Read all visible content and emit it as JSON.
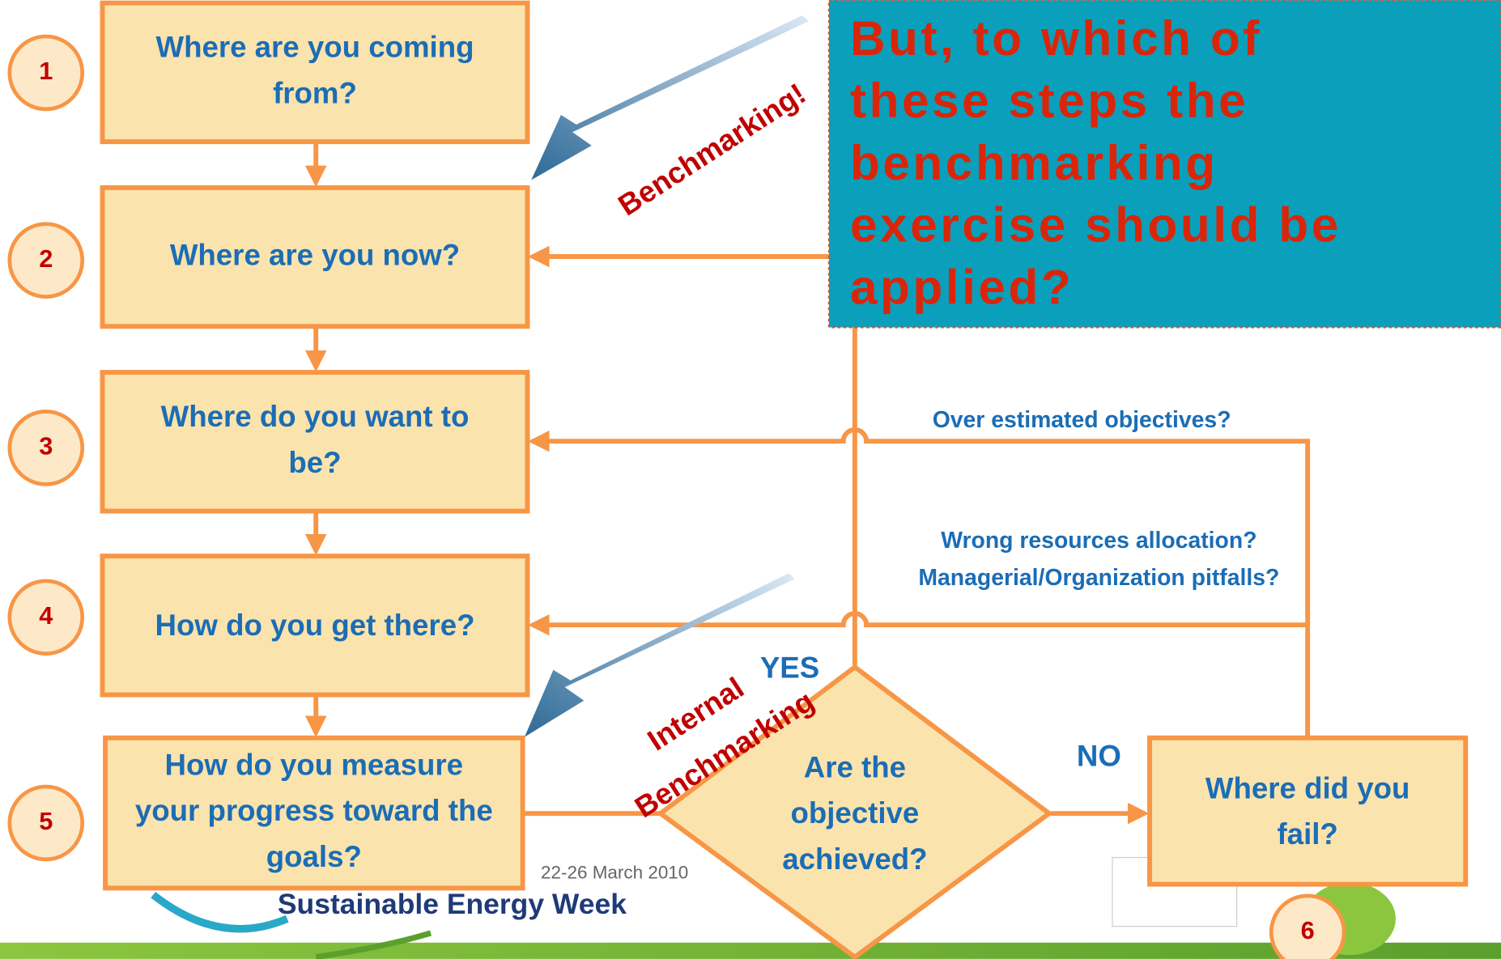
{
  "steps": [
    {
      "number": "1",
      "lines": [
        "Where are you coming",
        "from?"
      ]
    },
    {
      "number": "2",
      "lines": [
        "Where are you now?"
      ]
    },
    {
      "number": "3",
      "lines": [
        "Where do you want to",
        "be?"
      ]
    },
    {
      "number": "4",
      "lines": [
        "How do you get there?"
      ]
    },
    {
      "number": "5",
      "lines": [
        "How do you measure",
        "your progress toward the",
        "goals?"
      ]
    }
  ],
  "decision": {
    "lines": [
      "Are the",
      "objective",
      "achieved?"
    ],
    "yes": "YES",
    "no": "NO"
  },
  "fail": {
    "number": "6",
    "lines": [
      "Where did you",
      "fail?"
    ]
  },
  "feedback": [
    "Over estimated objectives?",
    "Wrong resources allocation?",
    "Managerial/Organization pitfalls?"
  ],
  "callout": {
    "lines": [
      "But, to which of",
      "these steps the",
      "benchmarking",
      "exercise should be",
      "applied?"
    ]
  },
  "arrows": {
    "first": "Benchmarking!",
    "second": [
      "Internal",
      "Benchmarking"
    ]
  },
  "footer": {
    "date": "22-26 March 2010",
    "event": "Sustainable Energy Week"
  }
}
